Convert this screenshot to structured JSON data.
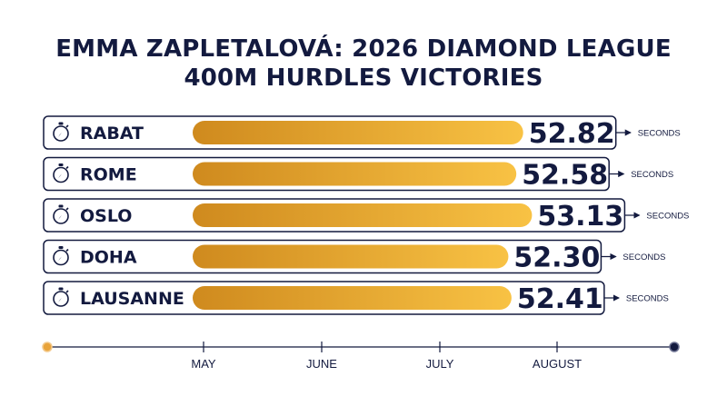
{
  "chart_data": {
    "type": "bar",
    "title_lines": [
      "EMMA ZAPLETALOVÁ: 2026 DIAMOND LEAGUE",
      "400M HURDLES VICTORIES"
    ],
    "categories": [
      "RABAT",
      "ROME",
      "OSLO",
      "DOHA",
      "LAUSANNE"
    ],
    "values": [
      52.82,
      52.58,
      53.13,
      52.3,
      52.41
    ],
    "value_labels": [
      "52.82",
      "52.58",
      "53.13",
      "52.30",
      "52.41"
    ],
    "unit": "SECONDS",
    "timeline_labels": [
      "MAY",
      "JUNE",
      "JULY",
      "AUGUST"
    ],
    "icon": "stopwatch-icon",
    "colors": {
      "bar_start": "#cf8a1e",
      "bar_end": "#f8c244",
      "ink": "#131a3f",
      "dot_start": "#e8a33a"
    }
  }
}
